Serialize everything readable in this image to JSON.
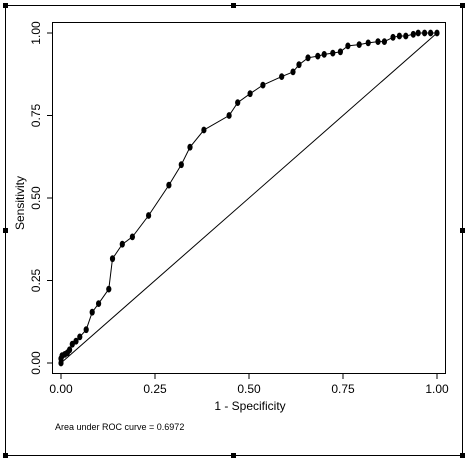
{
  "chart_data": {
    "type": "line",
    "title": "",
    "xlabel": "1 - Specificity",
    "ylabel": "Sensitivity",
    "xlim": [
      0,
      1
    ],
    "ylim": [
      0,
      1
    ],
    "grid": false,
    "legend": "none",
    "annotation": "Area under ROC curve = 0.6972",
    "x_ticks": [
      "0.00",
      "0.25",
      "0.50",
      "0.75",
      "1.00"
    ],
    "y_ticks": [
      "0.00",
      "0.25",
      "0.50",
      "0.75",
      "1.00"
    ],
    "reference_line": {
      "x": [
        0,
        1
      ],
      "y": [
        0,
        1
      ]
    },
    "series": [
      {
        "points": [
          [
            0.0,
            0.0
          ],
          [
            0.0,
            0.013
          ],
          [
            0.003,
            0.022
          ],
          [
            0.01,
            0.026
          ],
          [
            0.017,
            0.031
          ],
          [
            0.023,
            0.04
          ],
          [
            0.03,
            0.057
          ],
          [
            0.04,
            0.066
          ],
          [
            0.05,
            0.079
          ],
          [
            0.067,
            0.101
          ],
          [
            0.083,
            0.154
          ],
          [
            0.1,
            0.18
          ],
          [
            0.127,
            0.224
          ],
          [
            0.137,
            0.316
          ],
          [
            0.163,
            0.36
          ],
          [
            0.19,
            0.382
          ],
          [
            0.233,
            0.447
          ],
          [
            0.287,
            0.539
          ],
          [
            0.32,
            0.601
          ],
          [
            0.343,
            0.654
          ],
          [
            0.38,
            0.706
          ],
          [
            0.447,
            0.75
          ],
          [
            0.47,
            0.789
          ],
          [
            0.503,
            0.816
          ],
          [
            0.537,
            0.842
          ],
          [
            0.587,
            0.868
          ],
          [
            0.617,
            0.882
          ],
          [
            0.633,
            0.904
          ],
          [
            0.657,
            0.925
          ],
          [
            0.683,
            0.93
          ],
          [
            0.7,
            0.935
          ],
          [
            0.723,
            0.939
          ],
          [
            0.743,
            0.943
          ],
          [
            0.763,
            0.961
          ],
          [
            0.793,
            0.965
          ],
          [
            0.817,
            0.97
          ],
          [
            0.843,
            0.974
          ],
          [
            0.86,
            0.974
          ],
          [
            0.883,
            0.987
          ],
          [
            0.9,
            0.991
          ],
          [
            0.917,
            0.991
          ],
          [
            0.937,
            0.996
          ],
          [
            0.95,
            1.0
          ],
          [
            0.967,
            1.0
          ],
          [
            0.983,
            1.0
          ],
          [
            1.0,
            1.0
          ]
        ]
      }
    ]
  }
}
